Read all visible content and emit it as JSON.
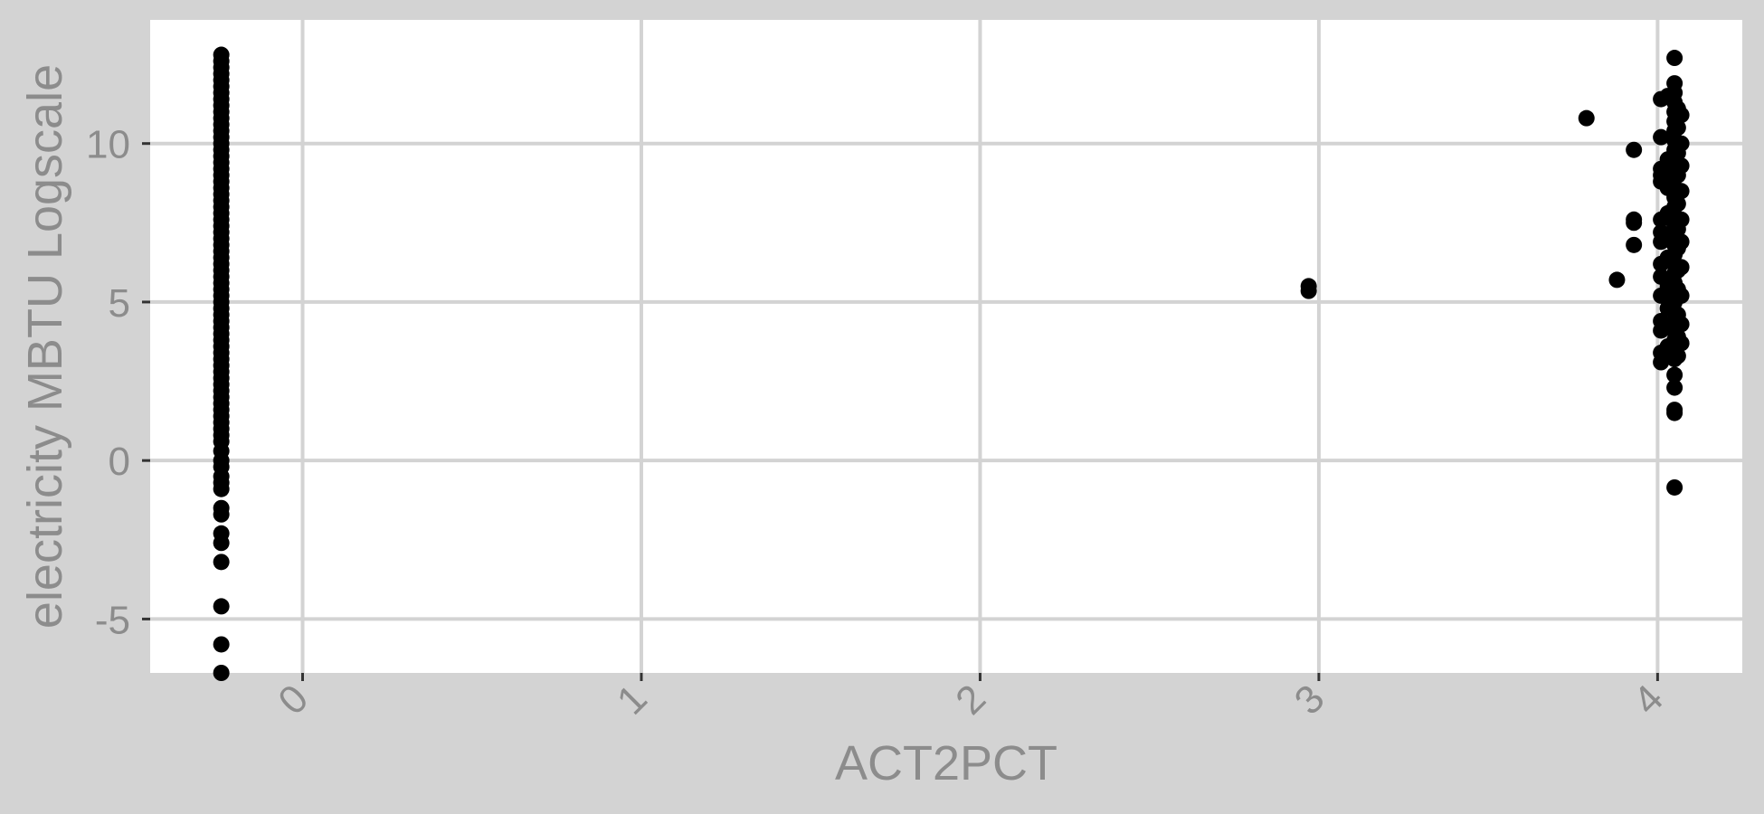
{
  "chart_data": {
    "type": "scatter",
    "title": "",
    "xlabel": "ACT2PCT",
    "ylabel": "electricity MBTU Logscale",
    "xlim": [
      -0.45,
      4.25
    ],
    "ylim": [
      -6.7,
      13.9
    ],
    "x_ticks": [
      "0",
      "1",
      "2",
      "3",
      "4"
    ],
    "y_ticks": [
      "-5",
      "0",
      "5",
      "10"
    ],
    "grid": true,
    "legend": "none",
    "series": [
      {
        "color": "#000000",
        "points": [
          {
            "x": -0.24,
            "y": 12.8
          },
          {
            "x": -0.24,
            "y": 12.6
          },
          {
            "x": -0.24,
            "y": 12.4
          },
          {
            "x": -0.24,
            "y": 12.2
          },
          {
            "x": -0.24,
            "y": 12.0
          },
          {
            "x": -0.24,
            "y": 11.8
          },
          {
            "x": -0.24,
            "y": 11.6
          },
          {
            "x": -0.24,
            "y": 11.4
          },
          {
            "x": -0.24,
            "y": 11.2
          },
          {
            "x": -0.24,
            "y": 11.0
          },
          {
            "x": -0.24,
            "y": 10.8
          },
          {
            "x": -0.24,
            "y": 10.6
          },
          {
            "x": -0.24,
            "y": 10.4
          },
          {
            "x": -0.24,
            "y": 10.2
          },
          {
            "x": -0.24,
            "y": 10.0
          },
          {
            "x": -0.24,
            "y": 9.8
          },
          {
            "x": -0.24,
            "y": 9.6
          },
          {
            "x": -0.24,
            "y": 9.4
          },
          {
            "x": -0.24,
            "y": 9.2
          },
          {
            "x": -0.24,
            "y": 9.0
          },
          {
            "x": -0.24,
            "y": 8.8
          },
          {
            "x": -0.24,
            "y": 8.6
          },
          {
            "x": -0.24,
            "y": 8.4
          },
          {
            "x": -0.24,
            "y": 8.2
          },
          {
            "x": -0.24,
            "y": 8.0
          },
          {
            "x": -0.24,
            "y": 7.8
          },
          {
            "x": -0.24,
            "y": 7.6
          },
          {
            "x": -0.24,
            "y": 7.4
          },
          {
            "x": -0.24,
            "y": 7.2
          },
          {
            "x": -0.24,
            "y": 7.0
          },
          {
            "x": -0.24,
            "y": 6.8
          },
          {
            "x": -0.24,
            "y": 6.6
          },
          {
            "x": -0.24,
            "y": 6.4
          },
          {
            "x": -0.24,
            "y": 6.2
          },
          {
            "x": -0.24,
            "y": 6.0
          },
          {
            "x": -0.24,
            "y": 5.8
          },
          {
            "x": -0.24,
            "y": 5.6
          },
          {
            "x": -0.24,
            "y": 5.4
          },
          {
            "x": -0.24,
            "y": 5.2
          },
          {
            "x": -0.24,
            "y": 5.0
          },
          {
            "x": -0.24,
            "y": 4.8
          },
          {
            "x": -0.24,
            "y": 4.6
          },
          {
            "x": -0.24,
            "y": 4.4
          },
          {
            "x": -0.24,
            "y": 4.2
          },
          {
            "x": -0.24,
            "y": 4.0
          },
          {
            "x": -0.24,
            "y": 3.8
          },
          {
            "x": -0.24,
            "y": 3.6
          },
          {
            "x": -0.24,
            "y": 3.4
          },
          {
            "x": -0.24,
            "y": 3.2
          },
          {
            "x": -0.24,
            "y": 3.0
          },
          {
            "x": -0.24,
            "y": 2.8
          },
          {
            "x": -0.24,
            "y": 2.6
          },
          {
            "x": -0.24,
            "y": 2.4
          },
          {
            "x": -0.24,
            "y": 2.2
          },
          {
            "x": -0.24,
            "y": 2.0
          },
          {
            "x": -0.24,
            "y": 1.8
          },
          {
            "x": -0.24,
            "y": 1.6
          },
          {
            "x": -0.24,
            "y": 1.4
          },
          {
            "x": -0.24,
            "y": 1.2
          },
          {
            "x": -0.24,
            "y": 1.0
          },
          {
            "x": -0.24,
            "y": 0.8
          },
          {
            "x": -0.24,
            "y": 0.6
          },
          {
            "x": -0.24,
            "y": 0.3
          },
          {
            "x": -0.24,
            "y": 0.0
          },
          {
            "x": -0.24,
            "y": -0.2
          },
          {
            "x": -0.24,
            "y": -0.5
          },
          {
            "x": -0.24,
            "y": -0.7
          },
          {
            "x": -0.24,
            "y": -0.9
          },
          {
            "x": -0.24,
            "y": -1.5
          },
          {
            "x": -0.24,
            "y": -1.7
          },
          {
            "x": -0.24,
            "y": -2.3
          },
          {
            "x": -0.24,
            "y": -2.6
          },
          {
            "x": -0.24,
            "y": -3.2
          },
          {
            "x": -0.24,
            "y": -4.6
          },
          {
            "x": -0.24,
            "y": -5.8
          },
          {
            "x": -0.24,
            "y": -6.7
          },
          {
            "x": 2.97,
            "y": 5.5
          },
          {
            "x": 2.97,
            "y": 5.35
          },
          {
            "x": 3.79,
            "y": 10.8
          },
          {
            "x": 3.88,
            "y": 5.7
          },
          {
            "x": 3.93,
            "y": 9.8
          },
          {
            "x": 3.93,
            "y": 7.6
          },
          {
            "x": 3.93,
            "y": 7.5
          },
          {
            "x": 3.93,
            "y": 6.8
          },
          {
            "x": 4.01,
            "y": 11.4
          },
          {
            "x": 4.01,
            "y": 10.2
          },
          {
            "x": 4.01,
            "y": 9.2
          },
          {
            "x": 4.01,
            "y": 9.0
          },
          {
            "x": 4.01,
            "y": 8.8
          },
          {
            "x": 4.01,
            "y": 7.6
          },
          {
            "x": 4.01,
            "y": 7.2
          },
          {
            "x": 4.01,
            "y": 6.9
          },
          {
            "x": 4.01,
            "y": 6.2
          },
          {
            "x": 4.01,
            "y": 5.8
          },
          {
            "x": 4.01,
            "y": 5.2
          },
          {
            "x": 4.01,
            "y": 4.4
          },
          {
            "x": 4.01,
            "y": 4.1
          },
          {
            "x": 4.01,
            "y": 3.4
          },
          {
            "x": 4.01,
            "y": 3.1
          },
          {
            "x": 4.03,
            "y": 11.5
          },
          {
            "x": 4.03,
            "y": 9.5
          },
          {
            "x": 4.03,
            "y": 8.6
          },
          {
            "x": 4.03,
            "y": 7.8
          },
          {
            "x": 4.03,
            "y": 7.0
          },
          {
            "x": 4.03,
            "y": 6.4
          },
          {
            "x": 4.03,
            "y": 5.5
          },
          {
            "x": 4.03,
            "y": 4.8
          },
          {
            "x": 4.03,
            "y": 4.2
          },
          {
            "x": 4.03,
            "y": 3.6
          },
          {
            "x": 4.05,
            "y": 12.7
          },
          {
            "x": 4.05,
            "y": 11.9
          },
          {
            "x": 4.05,
            "y": 11.6
          },
          {
            "x": 4.05,
            "y": 11.3
          },
          {
            "x": 4.05,
            "y": 11.0
          },
          {
            "x": 4.05,
            "y": 10.7
          },
          {
            "x": 4.05,
            "y": 10.4
          },
          {
            "x": 4.05,
            "y": 10.1
          },
          {
            "x": 4.05,
            "y": 9.8
          },
          {
            "x": 4.05,
            "y": 9.5
          },
          {
            "x": 4.05,
            "y": 9.2
          },
          {
            "x": 4.05,
            "y": 8.9
          },
          {
            "x": 4.05,
            "y": 8.6
          },
          {
            "x": 4.05,
            "y": 8.3
          },
          {
            "x": 4.05,
            "y": 8.0
          },
          {
            "x": 4.05,
            "y": 7.7
          },
          {
            "x": 4.05,
            "y": 7.4
          },
          {
            "x": 4.05,
            "y": 7.1
          },
          {
            "x": 4.05,
            "y": 6.8
          },
          {
            "x": 4.05,
            "y": 6.5
          },
          {
            "x": 4.05,
            "y": 6.2
          },
          {
            "x": 4.05,
            "y": 5.9
          },
          {
            "x": 4.05,
            "y": 5.6
          },
          {
            "x": 4.05,
            "y": 5.3
          },
          {
            "x": 4.05,
            "y": 5.0
          },
          {
            "x": 4.05,
            "y": 4.7
          },
          {
            "x": 4.05,
            "y": 4.4
          },
          {
            "x": 4.05,
            "y": 4.1
          },
          {
            "x": 4.05,
            "y": 3.8
          },
          {
            "x": 4.05,
            "y": 3.5
          },
          {
            "x": 4.05,
            "y": 3.2
          },
          {
            "x": 4.05,
            "y": 2.7
          },
          {
            "x": 4.05,
            "y": 2.3
          },
          {
            "x": 4.05,
            "y": 1.6
          },
          {
            "x": 4.05,
            "y": 1.5
          },
          {
            "x": 4.05,
            "y": -0.85
          },
          {
            "x": 4.06,
            "y": 11.1
          },
          {
            "x": 4.06,
            "y": 10.5
          },
          {
            "x": 4.06,
            "y": 9.7
          },
          {
            "x": 4.06,
            "y": 9.0
          },
          {
            "x": 4.06,
            "y": 8.1
          },
          {
            "x": 4.06,
            "y": 7.3
          },
          {
            "x": 4.06,
            "y": 6.7
          },
          {
            "x": 4.06,
            "y": 6.0
          },
          {
            "x": 4.06,
            "y": 5.4
          },
          {
            "x": 4.06,
            "y": 4.6
          },
          {
            "x": 4.06,
            "y": 3.9
          },
          {
            "x": 4.06,
            "y": 3.3
          },
          {
            "x": 4.07,
            "y": 10.9
          },
          {
            "x": 4.07,
            "y": 10.0
          },
          {
            "x": 4.07,
            "y": 9.3
          },
          {
            "x": 4.07,
            "y": 8.5
          },
          {
            "x": 4.07,
            "y": 7.6
          },
          {
            "x": 4.07,
            "y": 6.9
          },
          {
            "x": 4.07,
            "y": 6.1
          },
          {
            "x": 4.07,
            "y": 5.2
          },
          {
            "x": 4.07,
            "y": 4.3
          },
          {
            "x": 4.07,
            "y": 3.7
          }
        ]
      }
    ]
  }
}
